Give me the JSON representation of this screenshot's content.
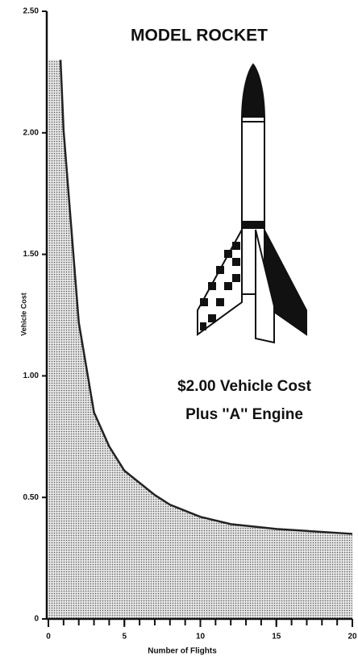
{
  "chart_data": {
    "type": "area",
    "title": "MODEL ROCKET",
    "annotations": [
      "$2.00 Vehicle Cost",
      "Plus ''A'' Engine"
    ],
    "x_label": "Number of Flights",
    "y_label": "Vehicle Cost",
    "x": [
      0.8,
      1,
      2,
      3,
      4,
      5,
      7,
      8,
      10,
      12,
      15,
      20
    ],
    "values": [
      2.3,
      2.01,
      1.22,
      0.85,
      0.71,
      0.61,
      0.51,
      0.47,
      0.42,
      0.39,
      0.37,
      0.35
    ],
    "color": "#222",
    "xlim": [
      0,
      20
    ],
    "xticks": [
      0,
      5,
      10,
      15,
      20
    ],
    "ylim": [
      0,
      2.5
    ],
    "yticks": [
      0,
      {
        "value": 0.5,
        "label": "0.50"
      },
      {
        "value": 1,
        "label": "1.00"
      },
      {
        "value": 1.5,
        "label": "1.50"
      },
      {
        "value": 2,
        "label": "2.00"
      },
      {
        "value": 2.5,
        "label": "2.50"
      }
    ]
  }
}
